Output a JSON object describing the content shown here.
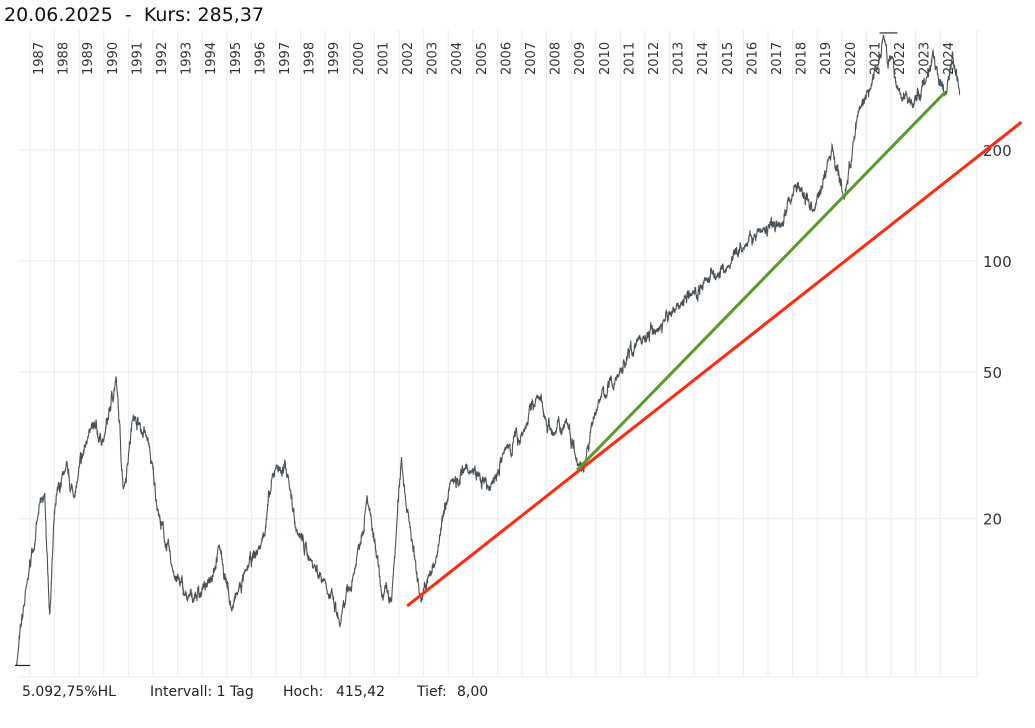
{
  "header": {
    "date": "20.06.2025",
    "separator": "  -  ",
    "price_label": "Kurs:",
    "price": "285,37"
  },
  "footer": {
    "change": "5.092,75%HL",
    "interval": "Intervall: 1 Tag",
    "high_label": "Hoch:",
    "high": "415,42",
    "low_label": "Tief:",
    "low": "8,00"
  },
  "chart_data": {
    "type": "line",
    "title": "20.06.2025 - Kurs: 285,37",
    "xlabel": "",
    "ylabel": "",
    "yscale": "log",
    "xlim": [
      1986.5,
      2025.6
    ],
    "ylim": [
      6.7,
      440
    ],
    "grid": true,
    "x_ticks": [
      "1987",
      "1988",
      "1989",
      "1990",
      "1991",
      "1992",
      "1993",
      "1994",
      "1995",
      "1996",
      "1997",
      "1998",
      "1999",
      "2000",
      "2001",
      "2002",
      "2003",
      "2004",
      "2005",
      "2006",
      "2007",
      "2008",
      "2009",
      "2010",
      "2011",
      "2012",
      "2013",
      "2014",
      "2015",
      "2016",
      "2017",
      "2018",
      "2019",
      "2020",
      "2021",
      "2022",
      "2023",
      "2024"
    ],
    "y_ticks": [
      "20",
      "50",
      "100",
      "200"
    ],
    "colors": {
      "price": "#4a5157",
      "support_long": "#ff2a10",
      "support_short": "#5a9a28",
      "grid": "#ebebeb"
    },
    "series": [
      {
        "name": "Kurs",
        "x": [
          1986.45,
          1986.9,
          1987.3,
          1987.6,
          1987.8,
          1988.0,
          1988.4,
          1988.8,
          1989.4,
          1990.0,
          1990.5,
          1990.8,
          1991.2,
          1991.8,
          1992.2,
          1992.8,
          1993.4,
          1994.2,
          1994.7,
          1995.2,
          1995.8,
          1996.4,
          1997.0,
          1997.5,
          1997.8,
          1998.4,
          1999.0,
          1999.6,
          2000.2,
          2000.7,
          2001.3,
          2001.7,
          2002.1,
          2002.4,
          2002.9,
          2003.5,
          2004.1,
          2004.9,
          2005.7,
          2006.3,
          2007.1,
          2007.6,
          2008.3,
          2008.8,
          2009.5,
          2010.1,
          2010.9,
          2011.7,
          2012.5,
          2013.3,
          2013.9,
          2014.5,
          2015.3,
          2016.1,
          2016.7,
          2017.5,
          2018.1,
          2018.3,
          2018.9,
          2019.5,
          2019.6,
          2020.1,
          2020.7,
          2021.2,
          2021.7,
          2022.3,
          2022.9,
          2023.5,
          2023.7,
          2024.2,
          2024.5,
          2024.8
        ],
        "values": [
          8,
          13.6,
          19.9,
          23.2,
          11,
          21,
          27,
          23,
          34.8,
          32.7,
          48,
          24,
          38.2,
          32.7,
          21,
          14.5,
          12.1,
          13.2,
          17,
          11.3,
          14.5,
          17,
          28,
          26.3,
          18.8,
          15.5,
          13.6,
          10.3,
          14.5,
          23,
          12.4,
          12,
          29,
          20,
          12,
          15.5,
          25.5,
          27,
          24,
          30.7,
          34.8,
          43.3,
          33.7,
          37,
          27,
          41.5,
          49,
          61,
          65,
          76,
          81,
          89,
          94.5,
          110,
          121,
          125,
          161,
          156,
          137,
          191,
          206,
          147,
          257,
          300,
          410,
          290,
          264,
          320,
          370,
          280,
          370,
          285
        ]
      }
    ],
    "trendlines": [
      {
        "name": "support-long",
        "from": [
          2002.33,
          11.6
        ],
        "to": [
          2027.3,
          238
        ]
      },
      {
        "name": "support-short",
        "from": [
          2009.24,
          27.1
        ],
        "to": [
          2024.2,
          287
        ]
      }
    ],
    "markers": {
      "high": 415.42,
      "high_year": 2021.9,
      "low": 8.0,
      "low_year": 1986.45
    }
  }
}
